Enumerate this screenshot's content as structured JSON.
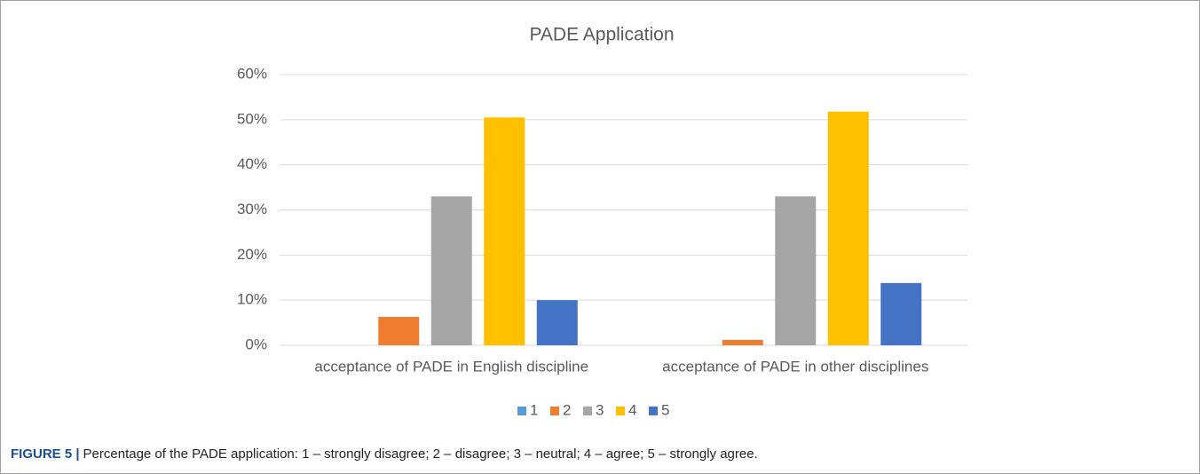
{
  "chart_data": {
    "type": "bar",
    "title": "PADE Application",
    "categories": [
      "acceptance of PADE in English discipline",
      "acceptance of PADE in other disciplines"
    ],
    "series": [
      {
        "name": "1",
        "color": "#5b9bd5",
        "values": [
          0,
          0
        ]
      },
      {
        "name": "2",
        "color": "#ed7d31",
        "values": [
          6.3,
          1.2
        ]
      },
      {
        "name": "3",
        "color": "#a5a5a5",
        "values": [
          33,
          33
        ]
      },
      {
        "name": "4",
        "color": "#ffc000",
        "values": [
          50.5,
          51.8
        ]
      },
      {
        "name": "5",
        "color": "#4472c4",
        "values": [
          10,
          13.8
        ]
      }
    ],
    "ylim": [
      0,
      60
    ],
    "yticks": [
      {
        "value": 0,
        "label": "0%"
      },
      {
        "value": 10,
        "label": "10%"
      },
      {
        "value": 20,
        "label": "20%"
      },
      {
        "value": 30,
        "label": "30%"
      },
      {
        "value": 40,
        "label": "40%"
      },
      {
        "value": 50,
        "label": "50%"
      },
      {
        "value": 60,
        "label": "60%"
      }
    ],
    "grid": true,
    "legend": "bottom"
  },
  "caption": {
    "label": "FIGURE 5 |",
    "text": "Percentage of the PADE application: 1 – strongly disagree; 2 – disagree; 3 – neutral; 4 – agree; 5 – strongly agree."
  }
}
